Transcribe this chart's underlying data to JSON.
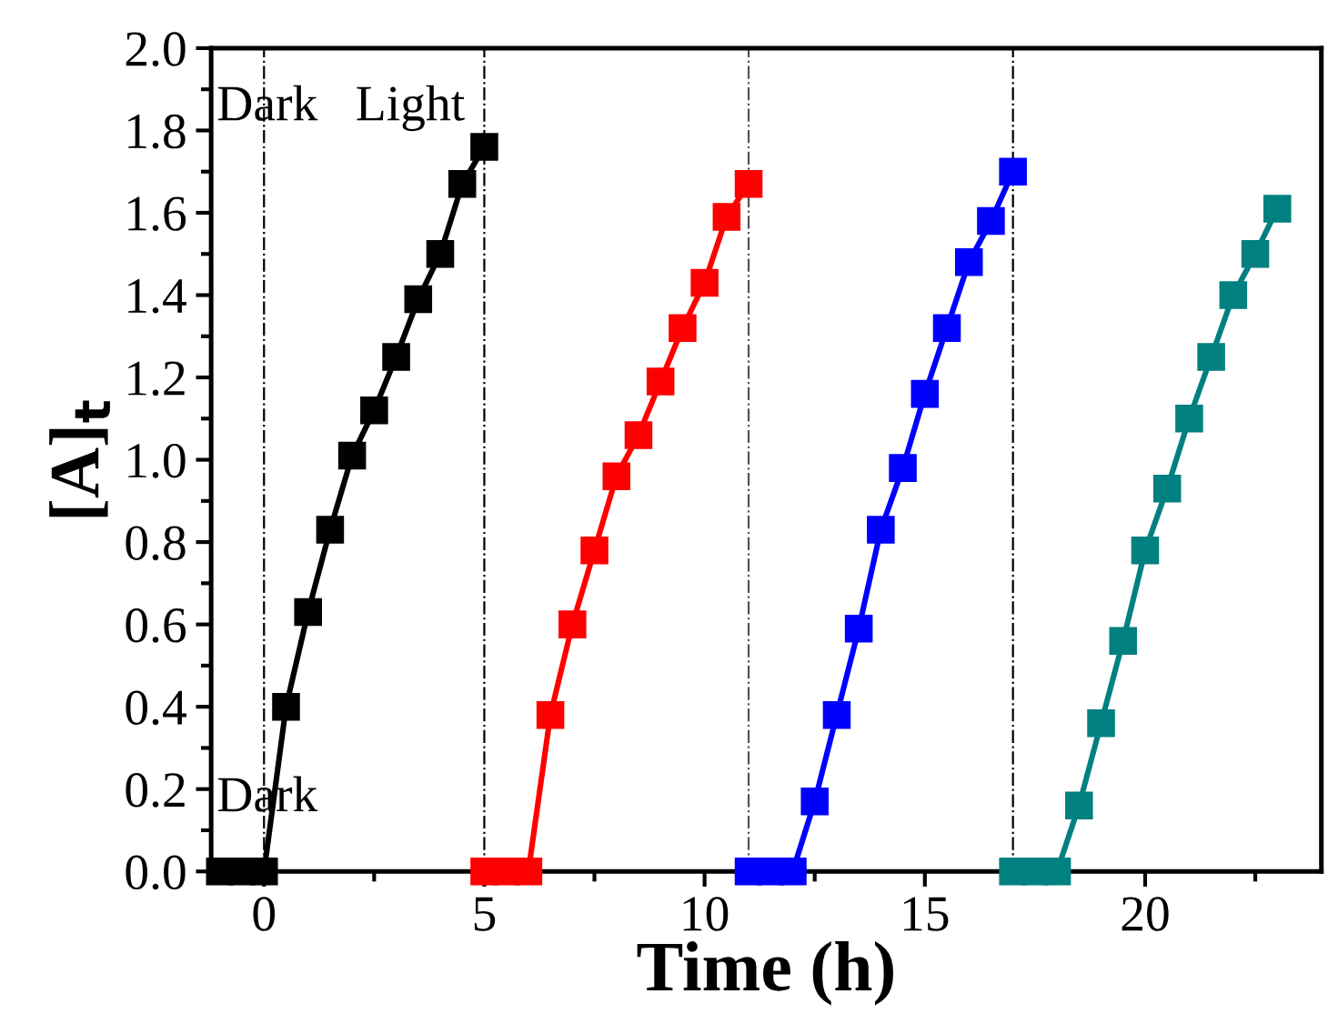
{
  "chart_data": {
    "type": "line",
    "xlabel": "Time (h)",
    "ylabel": "[A]$_{t}$",
    "xlim": [
      -1.2,
      24
    ],
    "ylim": [
      0,
      2.0
    ],
    "xticks": [
      0,
      {
        "value": 2.5,
        "label": null
      },
      5,
      {
        "value": 7.5,
        "label": null
      },
      10,
      {
        "value": 12.5,
        "label": null
      },
      15,
      {
        "value": 17.5,
        "label": null
      },
      20,
      {
        "value": 22.5,
        "label": null
      }
    ],
    "yticks": [
      {
        "value": 0,
        "label": "0.0"
      },
      {
        "value": 0.1,
        "label": null
      },
      {
        "value": 0.2,
        "label": "0.2"
      },
      {
        "value": 0.3,
        "label": null
      },
      {
        "value": 0.4,
        "label": "0.4"
      },
      {
        "value": 0.5,
        "label": null
      },
      {
        "value": 0.6,
        "label": "0.6"
      },
      {
        "value": 0.7,
        "label": null
      },
      {
        "value": 0.8,
        "label": "0.8"
      },
      {
        "value": 0.9,
        "label": null
      },
      {
        "value": 1.0,
        "label": "1.0"
      },
      {
        "value": 1.1,
        "label": null
      },
      {
        "value": 1.2,
        "label": "1.2"
      },
      {
        "value": 1.3,
        "label": null
      },
      {
        "value": 1.4,
        "label": "1.4"
      },
      {
        "value": 1.5,
        "label": null
      },
      {
        "value": 1.6,
        "label": "1.6"
      },
      {
        "value": 1.7,
        "label": null
      },
      {
        "value": 1.8,
        "label": "1.8"
      },
      {
        "value": 1.9,
        "label": null
      },
      {
        "value": 2.0,
        "label": "2.0"
      }
    ],
    "marker": "square",
    "line_style": "solid",
    "grid": false,
    "legend": false,
    "series": [
      {
        "color": "#000000",
        "x": [
          -1,
          -0.5,
          0,
          0.5,
          1,
          1.5,
          2,
          2.5,
          3,
          3.5,
          4,
          4.5,
          5
        ],
        "values": [
          0,
          0,
          0,
          0.4,
          0.63,
          0.83,
          1.01,
          1.12,
          1.25,
          1.39,
          1.5,
          1.67,
          1.76
        ]
      },
      {
        "color": "#ff0000",
        "x": [
          5,
          5.5,
          6,
          6.5,
          7,
          7.5,
          8,
          8.5,
          9,
          9.5,
          10,
          10.5,
          11
        ],
        "values": [
          0,
          0,
          0,
          0.38,
          0.6,
          0.78,
          0.96,
          1.06,
          1.19,
          1.32,
          1.43,
          1.59,
          1.67
        ]
      },
      {
        "color": "#0000ff",
        "x": [
          11,
          11.5,
          12,
          12.5,
          13,
          13.5,
          14,
          14.5,
          15,
          15.5,
          16,
          16.5,
          17
        ],
        "values": [
          0,
          0,
          0,
          0.17,
          0.38,
          0.59,
          0.83,
          0.98,
          1.16,
          1.32,
          1.48,
          1.58,
          1.7
        ]
      },
      {
        "color": "#008080",
        "x": [
          17,
          17.5,
          18,
          18.5,
          19,
          19.5,
          20,
          20.5,
          21,
          21.5,
          22,
          22.5,
          23
        ],
        "values": [
          0,
          0,
          0,
          0.16,
          0.36,
          0.56,
          0.78,
          0.93,
          1.1,
          1.25,
          1.4,
          1.5,
          1.61
        ]
      }
    ],
    "ref_lines": [
      {
        "axis": "x",
        "value": 0,
        "color": "#000000",
        "line_style": "dashdot"
      },
      {
        "axis": "x",
        "value": 5,
        "color": "#000000",
        "line_style": "dashdot"
      },
      {
        "axis": "x",
        "value": 11,
        "color": "#555555",
        "line_style": "dashdot"
      },
      {
        "axis": "x",
        "value": 17,
        "color": "#000000",
        "line_style": "dashdot"
      }
    ],
    "annotations": [
      "Dark",
      "Light",
      "Dark"
    ]
  }
}
